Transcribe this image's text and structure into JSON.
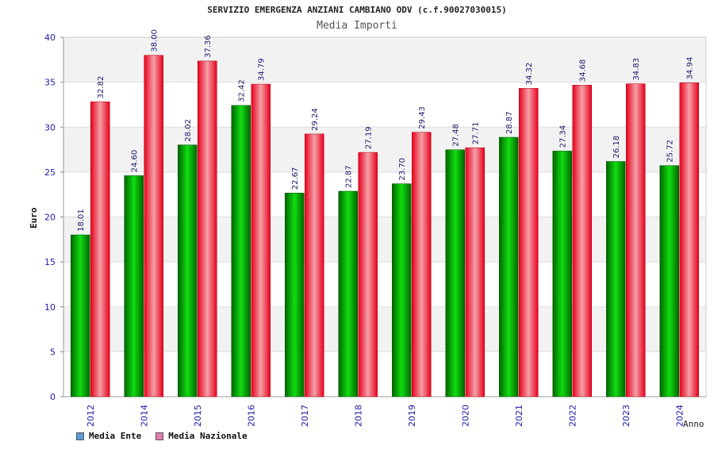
{
  "chart_data": {
    "type": "bar",
    "title": "SERVIZIO EMERGENZA ANZIANI CAMBIANO ODV (c.f.90027030015)",
    "subtitle": "Media Importi",
    "xlabel": "Anno",
    "ylabel": "Euro",
    "ylim": [
      0,
      40
    ],
    "yticks": [
      0,
      5,
      10,
      15,
      20,
      25,
      30,
      35,
      40
    ],
    "grid": true,
    "legend_position": "bottom-left",
    "categories": [
      "2012",
      "2014",
      "2015",
      "2016",
      "2017",
      "2018",
      "2019",
      "2020",
      "2021",
      "2022",
      "2023",
      "2024"
    ],
    "series": [
      {
        "name": "Media Ente",
        "color": "#00c000",
        "legend_color": "#5b9bd5",
        "values": [
          18.01,
          24.6,
          28.02,
          32.42,
          22.67,
          22.87,
          23.7,
          27.48,
          28.87,
          27.34,
          26.18,
          25.72
        ],
        "labels": [
          "18.01",
          "24.60",
          "28.02",
          "32.42",
          "22.67",
          "22.87",
          "23.70",
          "27.48",
          "28.87",
          "27.34",
          "26.18",
          "25.72"
        ]
      },
      {
        "name": "Media Nazionale",
        "color": "#e8001c",
        "legend_color": "#e080b0",
        "values": [
          32.82,
          38.0,
          37.36,
          34.79,
          29.24,
          27.19,
          29.43,
          27.71,
          34.32,
          34.68,
          34.83,
          34.94
        ],
        "labels": [
          "32.82",
          "38.00",
          "37.36",
          "34.79",
          "29.24",
          "27.19",
          "29.43",
          "27.71",
          "34.32",
          "34.68",
          "34.83",
          "34.94"
        ]
      }
    ]
  }
}
